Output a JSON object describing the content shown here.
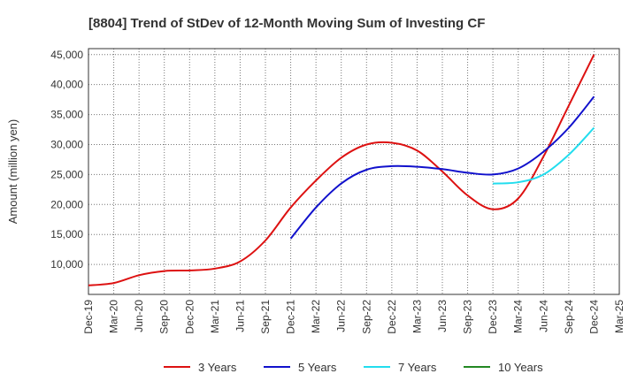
{
  "chart_data": {
    "type": "line",
    "title": "[8804]  Trend of StDev of 12-Month Moving Sum of Investing CF",
    "xlabel": "",
    "ylabel": "Amount (million yen)",
    "ylim": [
      5000,
      46000
    ],
    "yticks": [
      10000,
      15000,
      20000,
      25000,
      30000,
      35000,
      40000,
      45000
    ],
    "ytick_labels": [
      "10,000",
      "15,000",
      "20,000",
      "25,000",
      "30,000",
      "35,000",
      "40,000",
      "45,000"
    ],
    "categories": [
      "Dec-19",
      "Mar-20",
      "Jun-20",
      "Sep-20",
      "Dec-20",
      "Mar-21",
      "Jun-21",
      "Sep-21",
      "Dec-21",
      "Mar-22",
      "Jun-22",
      "Sep-22",
      "Dec-22",
      "Mar-23",
      "Jun-23",
      "Sep-23",
      "Dec-23",
      "Mar-24",
      "Jun-24",
      "Sep-24",
      "Dec-24",
      "Mar-25"
    ],
    "grid": true,
    "legend_position": "bottom",
    "series": [
      {
        "name": "3 Years",
        "color": "#dd1111",
        "points": [
          [
            0,
            6500
          ],
          [
            1,
            6900
          ],
          [
            2,
            8200
          ],
          [
            3,
            8900
          ],
          [
            4,
            9000
          ],
          [
            5,
            9300
          ],
          [
            6,
            10500
          ],
          [
            7,
            14000
          ],
          [
            8,
            19500
          ],
          [
            9,
            24000
          ],
          [
            10,
            27800
          ],
          [
            11,
            30000
          ],
          [
            12,
            30300
          ],
          [
            13,
            29000
          ],
          [
            14,
            25500
          ],
          [
            15,
            21500
          ],
          [
            16,
            19200
          ],
          [
            17,
            21000
          ],
          [
            18,
            28000
          ],
          [
            19,
            36500
          ],
          [
            20,
            45000
          ]
        ]
      },
      {
        "name": "5 Years",
        "color": "#1111cc",
        "points": [
          [
            8,
            14300
          ],
          [
            9,
            19500
          ],
          [
            10,
            23500
          ],
          [
            11,
            25800
          ],
          [
            12,
            26400
          ],
          [
            13,
            26300
          ],
          [
            14,
            25900
          ],
          [
            15,
            25300
          ],
          [
            16,
            25000
          ],
          [
            17,
            26000
          ],
          [
            18,
            28800
          ],
          [
            19,
            32800
          ],
          [
            20,
            38000
          ]
        ]
      },
      {
        "name": "7 Years",
        "color": "#22ddee",
        "points": [
          [
            16,
            23500
          ],
          [
            17,
            23700
          ],
          [
            18,
            25000
          ],
          [
            19,
            28300
          ],
          [
            20,
            32800
          ]
        ]
      },
      {
        "name": "10 Years",
        "color": "#228822",
        "points": []
      }
    ]
  }
}
